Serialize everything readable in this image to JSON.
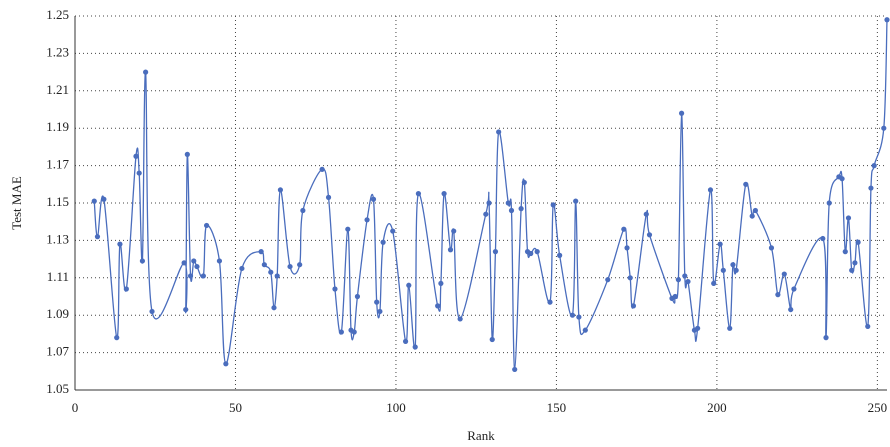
{
  "chart_data": {
    "type": "line",
    "x_label": "Rank",
    "y_label": "Test MAE",
    "xlim": [
      0,
      253
    ],
    "ylim": [
      1.05,
      1.25
    ],
    "xticks": [
      0,
      50,
      100,
      150,
      200,
      250
    ],
    "yticks": [
      1.05,
      1.07,
      1.09,
      1.11,
      1.13,
      1.15,
      1.17,
      1.19,
      1.21,
      1.23,
      1.25
    ],
    "grid": true,
    "series": [
      {
        "color": "#4a6dbd",
        "x": [
          6,
          7,
          9,
          13,
          14,
          16,
          19,
          20,
          21,
          22,
          24,
          34,
          34.5,
          35,
          36,
          37,
          38,
          40,
          41,
          45,
          47,
          52,
          58,
          59,
          61,
          62,
          63,
          64,
          67,
          70,
          71,
          77,
          79,
          81,
          83,
          85,
          86,
          87,
          88,
          91,
          93,
          94,
          95,
          96,
          99,
          103,
          104,
          106,
          107,
          113,
          114,
          115,
          117,
          118,
          120,
          128,
          129,
          130,
          131,
          132,
          135,
          136,
          137,
          139,
          140,
          141,
          142,
          144,
          148,
          149,
          151,
          155,
          156,
          157,
          159,
          166,
          171,
          172,
          173,
          174,
          178,
          179,
          186,
          187,
          188,
          189,
          190,
          191,
          193,
          194,
          198,
          199,
          201,
          202,
          204,
          205,
          206,
          209,
          211,
          212,
          217,
          219,
          221,
          223,
          224,
          233,
          234,
          235,
          238,
          239,
          240,
          241,
          242,
          243,
          244,
          247,
          248,
          249,
          252,
          253
        ],
        "values": [
          1.151,
          1.132,
          1.152,
          1.078,
          1.128,
          1.104,
          1.175,
          1.166,
          1.119,
          1.22,
          1.092,
          1.118,
          1.093,
          1.176,
          1.111,
          1.119,
          1.116,
          1.111,
          1.138,
          1.119,
          1.064,
          1.115,
          1.124,
          1.117,
          1.113,
          1.094,
          1.111,
          1.157,
          1.116,
          1.117,
          1.146,
          1.168,
          1.153,
          1.104,
          1.081,
          1.136,
          1.082,
          1.081,
          1.1,
          1.141,
          1.152,
          1.097,
          1.092,
          1.129,
          1.135,
          1.076,
          1.106,
          1.073,
          1.155,
          1.095,
          1.107,
          1.155,
          1.125,
          1.135,
          1.088,
          1.144,
          1.15,
          1.077,
          1.124,
          1.188,
          1.15,
          1.146,
          1.061,
          1.147,
          1.161,
          1.124,
          1.123,
          1.124,
          1.097,
          1.149,
          1.122,
          1.09,
          1.151,
          1.089,
          1.082,
          1.109,
          1.136,
          1.126,
          1.11,
          1.095,
          1.144,
          1.133,
          1.099,
          1.1,
          1.109,
          1.198,
          1.111,
          1.108,
          1.082,
          1.083,
          1.157,
          1.107,
          1.128,
          1.114,
          1.083,
          1.117,
          1.114,
          1.16,
          1.143,
          1.146,
          1.126,
          1.101,
          1.112,
          1.093,
          1.104,
          1.131,
          1.078,
          1.15,
          1.164,
          1.163,
          1.124,
          1.142,
          1.114,
          1.118,
          1.129,
          1.084,
          1.158,
          1.17,
          1.19,
          1.248
        ]
      }
    ]
  }
}
